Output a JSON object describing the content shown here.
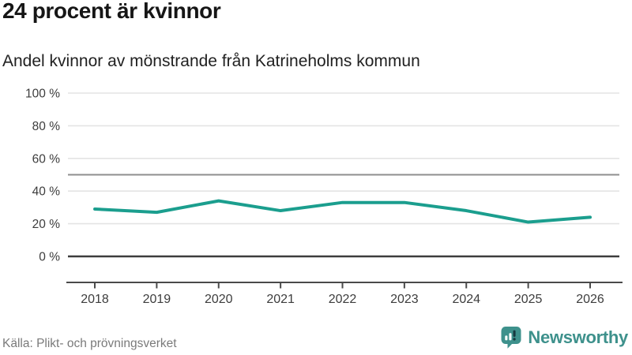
{
  "header": {
    "title": "24 procent är kvinnor",
    "subtitle": "Andel kvinnor av mönstrande från Katrineholms kommun"
  },
  "chart_data": {
    "type": "line",
    "title": "24 procent är kvinnor",
    "subtitle": "Andel kvinnor av mönstrande från Katrineholms kommun",
    "x": [
      "2018",
      "2019",
      "2020",
      "2021",
      "2022",
      "2023",
      "2024",
      "2025",
      "2026"
    ],
    "series": [
      {
        "name": "Andel kvinnor av mönstrande",
        "values": [
          29,
          27,
          34,
          28,
          33,
          33,
          28,
          21,
          24
        ]
      }
    ],
    "unit": "%",
    "ylim": [
      0,
      100
    ],
    "y_ticks": [
      {
        "value": 0,
        "label": "0 %"
      },
      {
        "value": 20,
        "label": "20 %"
      },
      {
        "value": 40,
        "label": "40 %"
      },
      {
        "value": 60,
        "label": "60 %"
      },
      {
        "value": 80,
        "label": "80 %"
      },
      {
        "value": 100,
        "label": "100 %"
      }
    ],
    "gridlines": [
      20,
      40,
      60,
      80,
      100
    ],
    "reference_line": 50,
    "grid": true,
    "legend": "none"
  },
  "footer": {
    "source": "Källa: Plikt- och prövningsverket",
    "brand": "Newsworthy",
    "brand_icon": "newsworthy-speech-bubble-chart-icon"
  },
  "colors": {
    "line": "#1b9e8e",
    "grid": "#e4e4e4",
    "reference_line": "#8f8f8f",
    "zero_line": "#3d3d3d",
    "axis": "#4a4a4a",
    "tick_text": "#3d3d3d",
    "title_text": "#161616",
    "subtitle_text": "#212121",
    "source_text": "#7a7a7a",
    "brand_teal": "#3e918c",
    "brand_dark": "#173a40"
  }
}
